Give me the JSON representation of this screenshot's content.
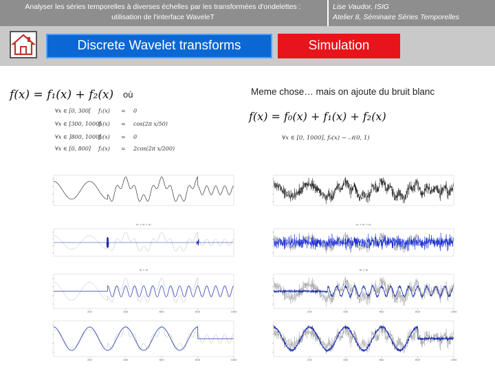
{
  "header": {
    "title_line1": "Analyser les séries temporelles à diverses échelles par les transformées d'ondelettes :",
    "title_line2": "utilisation de l'interface WaveleT",
    "author_line1": "Lise Vaudor, ISIG",
    "author_line2": "Atelier 8, Séminaire Séries Temporelles"
  },
  "nav": {
    "home_icon": "home-icon",
    "dwt_label": "Discrete Wavelet transforms",
    "sim_label": "Simulation",
    "dwt_color": "#0b67d3",
    "sim_color": "#e8141b"
  },
  "left": {
    "equation": "f(x) = f₁(x) + f₂(x)",
    "ou_label": "où",
    "conditions": [
      {
        "domain": "∀x ∈ [0, 300[",
        "fn": "f₁(x)",
        "rel": "=",
        "value": "0"
      },
      {
        "domain": "∀x ∈ [300, 1000]",
        "fn": "f₁(x)",
        "rel": "=",
        "value": "cos(2π x/50)"
      },
      {
        "domain": "∀x ∈ ]800, 1000]",
        "fn": "f₂(x)",
        "rel": "=",
        "value": "0"
      },
      {
        "domain": "∀x ∈ [0, 800]",
        "fn": "f₂(x)",
        "rel": "=",
        "value": "2cos(2π x/200)"
      }
    ],
    "panel_labels": [
      "d₁ + d₂ + d₃",
      "d₄ + d₅"
    ],
    "x_ticks": [
      "200",
      "400",
      "600",
      "800",
      "1000"
    ]
  },
  "right": {
    "note": "Meme chose… mais on ajoute du bruit blanc",
    "equation": "f(x) = f₀(x) + f₁(x) + f₂(x)",
    "noise_def": "∀x ∈ [0, 1000],   f₀(x)   ~   𝒩(0, 1)",
    "panel_labels": [
      "d₁ + d₂ + d₃",
      "d₄ + d₅"
    ],
    "x_ticks": [
      "200",
      "400",
      "600",
      "800",
      "1000"
    ]
  },
  "colors": {
    "signal": "#111111",
    "overlay": "#9a9a9a",
    "component": "#1a2fb0",
    "noise_component": "#0c22d8"
  }
}
